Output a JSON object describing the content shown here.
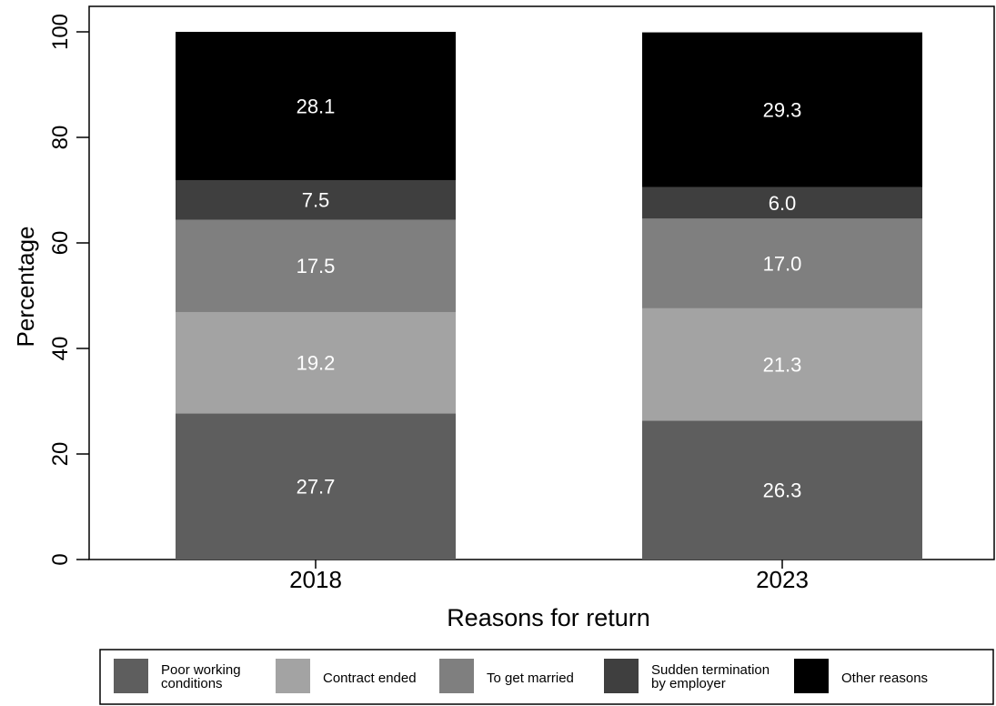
{
  "chart_data": {
    "type": "bar",
    "stacked": true,
    "categories": [
      "2018",
      "2023"
    ],
    "xlabel": "Reasons for return",
    "ylabel": "Percentage",
    "ylim": [
      0,
      100
    ],
    "yticks": [
      0,
      20,
      40,
      60,
      80,
      100
    ],
    "grid": false,
    "legend_position": "bottom",
    "series": [
      {
        "name": "Poor working conditions",
        "legend_lines": [
          "Poor working",
          "conditions"
        ],
        "color": "#5e5e5e",
        "values": [
          27.7,
          26.3
        ],
        "labels": [
          "27.7",
          "26.3"
        ]
      },
      {
        "name": "Contract ended",
        "legend_lines": [
          "Contract ended"
        ],
        "color": "#a3a3a3",
        "values": [
          19.2,
          21.3
        ],
        "labels": [
          "19.2",
          "21.3"
        ]
      },
      {
        "name": "To get married",
        "legend_lines": [
          "To get married"
        ],
        "color": "#7f7f7f",
        "values": [
          17.5,
          17.0
        ],
        "labels": [
          "17.5",
          "17.0"
        ]
      },
      {
        "name": "Sudden termination by employer",
        "legend_lines": [
          "Sudden termination",
          "by employer"
        ],
        "color": "#3f3f3f",
        "values": [
          7.5,
          6.0
        ],
        "labels": [
          "7.5",
          "6.0"
        ]
      },
      {
        "name": "Other reasons",
        "legend_lines": [
          "Other reasons"
        ],
        "color": "#000000",
        "values": [
          28.1,
          29.3
        ],
        "labels": [
          "28.1",
          "29.3"
        ]
      }
    ]
  }
}
